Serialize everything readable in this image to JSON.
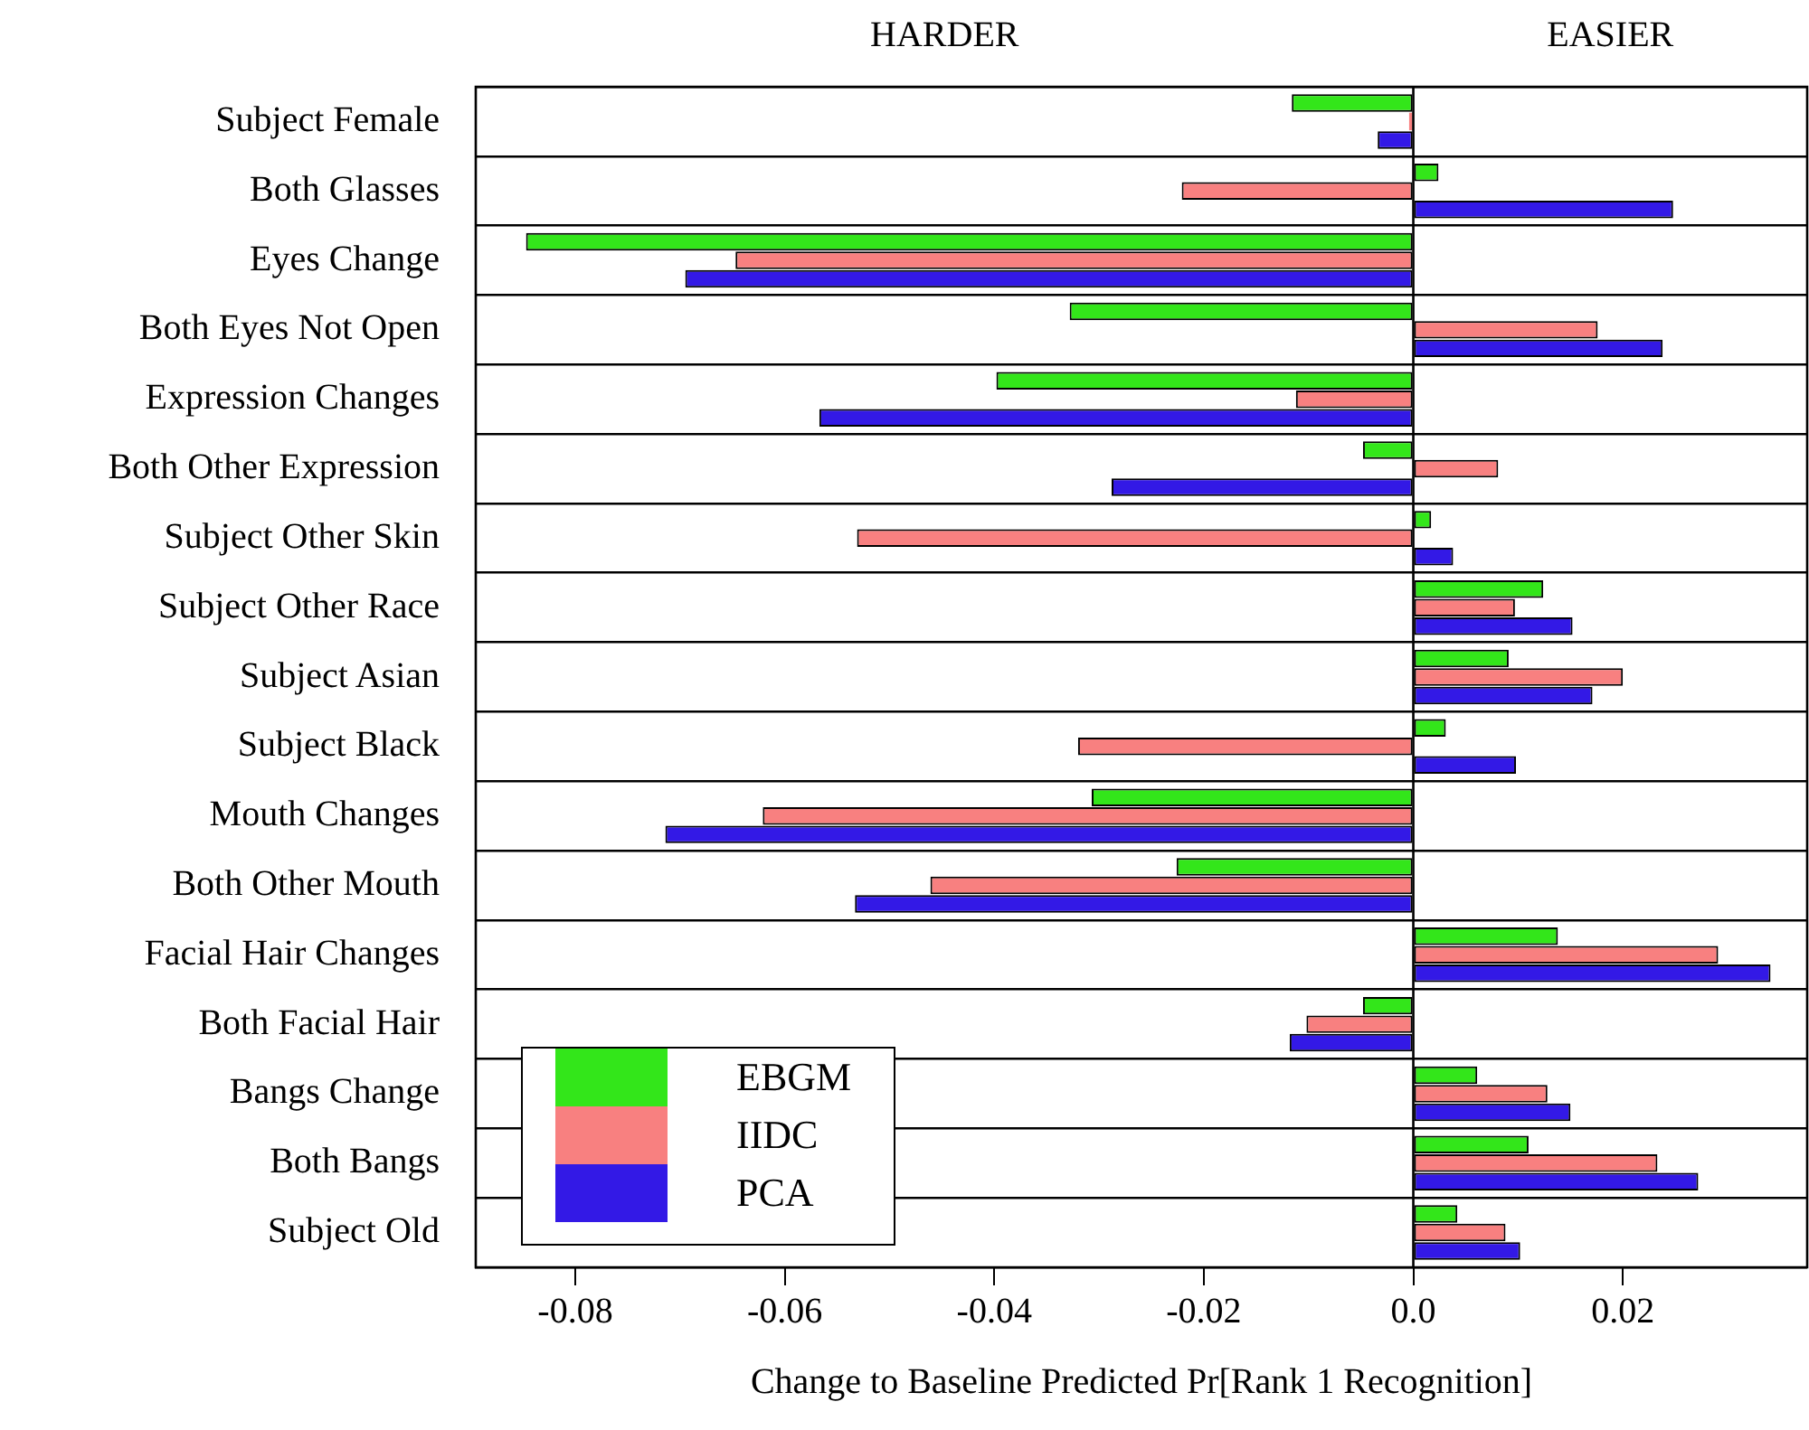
{
  "chart_data": {
    "type": "bar",
    "orientation": "horizontal",
    "xlabel": "Change to Baseline Predicted Pr[Rank 1 Recognition]",
    "annotations": [
      "HARDER",
      "EASIER"
    ],
    "categories": [
      "Subject Female",
      "Both Glasses",
      "Eyes Change",
      "Both Eyes Not Open",
      "Expression Changes",
      "Both Other Expression",
      "Subject Other Skin",
      "Subject Other Race",
      "Subject Asian",
      "Subject Black",
      "Mouth Changes",
      "Both Other Mouth",
      "Facial Hair Changes",
      "Both Facial Hair",
      "Bangs Change",
      "Both Bangs",
      "Subject Old"
    ],
    "series": [
      {
        "name": "EBGM",
        "color": "#33e61a",
        "values": [
          -0.0116,
          0.0024,
          -0.0847,
          -0.0328,
          -0.0398,
          -0.0048,
          0.0017,
          0.0124,
          0.0091,
          0.0031,
          -0.0307,
          -0.0226,
          0.0138,
          -0.0048,
          0.0061,
          0.011,
          0.0042
        ]
      },
      {
        "name": "IIDC",
        "color": "#f88080",
        "values": [
          -0.0004,
          -0.0221,
          -0.0647,
          0.0176,
          -0.0112,
          0.0081,
          -0.0531,
          0.0097,
          0.02,
          -0.032,
          -0.0621,
          -0.0461,
          0.0291,
          -0.0102,
          0.0128,
          0.0233,
          0.0088
        ]
      },
      {
        "name": "PCA",
        "color": "#3319e6",
        "values": [
          -0.0034,
          0.0248,
          -0.0695,
          0.0238,
          -0.0567,
          -0.0288,
          0.0038,
          0.0152,
          0.0171,
          0.0098,
          -0.0714,
          -0.0533,
          0.0341,
          -0.0118,
          0.015,
          0.0272,
          0.0102
        ]
      }
    ],
    "xlim": [
      -0.0895,
      0.0376
    ],
    "xticks": [
      {
        "value": -0.08,
        "label": "-0.08"
      },
      {
        "value": -0.06,
        "label": "-0.06"
      },
      {
        "value": -0.04,
        "label": "-0.04"
      },
      {
        "value": -0.02,
        "label": "-0.02"
      },
      {
        "value": 0,
        "label": "0.0"
      },
      {
        "value": 0.02,
        "label": "0.02"
      }
    ],
    "ref_lines": [
      {
        "axis": "x",
        "value": 0
      }
    ],
    "grid": "y",
    "legend": "bottom left"
  }
}
